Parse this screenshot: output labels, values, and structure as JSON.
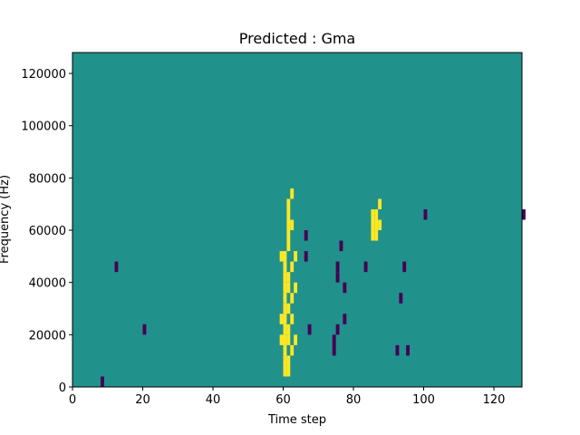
{
  "chart_data": {
    "type": "heatmap",
    "title": "Predicted : Gma",
    "xlabel": "Time step",
    "ylabel": "Frequency (Hz)",
    "xlim": [
      0,
      128
    ],
    "ylim": [
      0,
      128000
    ],
    "xticks": [
      0,
      20,
      40,
      60,
      80,
      100,
      120
    ],
    "yticks": [
      0,
      20000,
      40000,
      60000,
      80000,
      100000,
      120000
    ],
    "xtick_labels": [
      "0",
      "20",
      "40",
      "60",
      "80",
      "100",
      "120"
    ],
    "ytick_labels": [
      "0",
      "20000",
      "40000",
      "60000",
      "80000",
      "100000",
      "120000"
    ],
    "colormap": "viridis",
    "background_value_color": "#21918c",
    "high_value_color": "#fde725",
    "low_value_color": "#440154",
    "bin_height_hz": 4000,
    "cells": [
      {
        "t": 60,
        "f": 4000,
        "v": "high"
      },
      {
        "t": 60,
        "f": 8000,
        "v": "high"
      },
      {
        "t": 60,
        "f": 12000,
        "v": "high"
      },
      {
        "t": 60,
        "f": 16000,
        "v": "high"
      },
      {
        "t": 60,
        "f": 20000,
        "v": "high"
      },
      {
        "t": 60,
        "f": 24000,
        "v": "high"
      },
      {
        "t": 60,
        "f": 28000,
        "v": "high"
      },
      {
        "t": 60,
        "f": 32000,
        "v": "high"
      },
      {
        "t": 60,
        "f": 36000,
        "v": "high"
      },
      {
        "t": 60,
        "f": 40000,
        "v": "high"
      },
      {
        "t": 60,
        "f": 44000,
        "v": "high"
      },
      {
        "t": 60,
        "f": 48000,
        "v": "high"
      },
      {
        "t": 61,
        "f": 4000,
        "v": "high"
      },
      {
        "t": 61,
        "f": 8000,
        "v": "high"
      },
      {
        "t": 61,
        "f": 16000,
        "v": "high"
      },
      {
        "t": 61,
        "f": 20000,
        "v": "high"
      },
      {
        "t": 61,
        "f": 28000,
        "v": "high"
      },
      {
        "t": 61,
        "f": 36000,
        "v": "high"
      },
      {
        "t": 61,
        "f": 40000,
        "v": "high"
      },
      {
        "t": 61,
        "f": 52000,
        "v": "high"
      },
      {
        "t": 61,
        "f": 56000,
        "v": "high"
      },
      {
        "t": 61,
        "f": 60000,
        "v": "high"
      },
      {
        "t": 61,
        "f": 64000,
        "v": "high"
      },
      {
        "t": 61,
        "f": 68000,
        "v": "high"
      },
      {
        "t": 62,
        "f": 12000,
        "v": "high"
      },
      {
        "t": 62,
        "f": 24000,
        "v": "high"
      },
      {
        "t": 62,
        "f": 32000,
        "v": "high"
      },
      {
        "t": 62,
        "f": 44000,
        "v": "high"
      },
      {
        "t": 62,
        "f": 60000,
        "v": "high"
      },
      {
        "t": 62,
        "f": 72000,
        "v": "high"
      },
      {
        "t": 63,
        "f": 16000,
        "v": "high"
      },
      {
        "t": 63,
        "f": 36000,
        "v": "high"
      },
      {
        "t": 63,
        "f": 48000,
        "v": "high"
      },
      {
        "t": 59,
        "f": 16000,
        "v": "high"
      },
      {
        "t": 59,
        "f": 24000,
        "v": "high"
      },
      {
        "t": 59,
        "f": 48000,
        "v": "high"
      },
      {
        "t": 85,
        "f": 56000,
        "v": "high"
      },
      {
        "t": 85,
        "f": 60000,
        "v": "high"
      },
      {
        "t": 85,
        "f": 64000,
        "v": "high"
      },
      {
        "t": 86,
        "f": 56000,
        "v": "high"
      },
      {
        "t": 86,
        "f": 60000,
        "v": "high"
      },
      {
        "t": 86,
        "f": 64000,
        "v": "high"
      },
      {
        "t": 87,
        "f": 60000,
        "v": "high"
      },
      {
        "t": 87,
        "f": 68000,
        "v": "high"
      },
      {
        "t": 66,
        "f": 56000,
        "v": "low"
      },
      {
        "t": 66,
        "f": 48000,
        "v": "low"
      },
      {
        "t": 67,
        "f": 20000,
        "v": "low"
      },
      {
        "t": 74,
        "f": 12000,
        "v": "low"
      },
      {
        "t": 74,
        "f": 16000,
        "v": "low"
      },
      {
        "t": 75,
        "f": 20000,
        "v": "low"
      },
      {
        "t": 75,
        "f": 40000,
        "v": "low"
      },
      {
        "t": 75,
        "f": 44000,
        "v": "low"
      },
      {
        "t": 76,
        "f": 52000,
        "v": "low"
      },
      {
        "t": 77,
        "f": 24000,
        "v": "low"
      },
      {
        "t": 77,
        "f": 36000,
        "v": "low"
      },
      {
        "t": 83,
        "f": 44000,
        "v": "low"
      },
      {
        "t": 92,
        "f": 12000,
        "v": "low"
      },
      {
        "t": 93,
        "f": 32000,
        "v": "low"
      },
      {
        "t": 94,
        "f": 44000,
        "v": "low"
      },
      {
        "t": 95,
        "f": 12000,
        "v": "low"
      },
      {
        "t": 100,
        "f": 64000,
        "v": "low"
      },
      {
        "t": 128,
        "f": 64000,
        "v": "low"
      },
      {
        "t": 12,
        "f": 44000,
        "v": "low"
      },
      {
        "t": 8,
        "f": 0,
        "v": "low"
      },
      {
        "t": 20,
        "f": 20000,
        "v": "low"
      }
    ]
  }
}
